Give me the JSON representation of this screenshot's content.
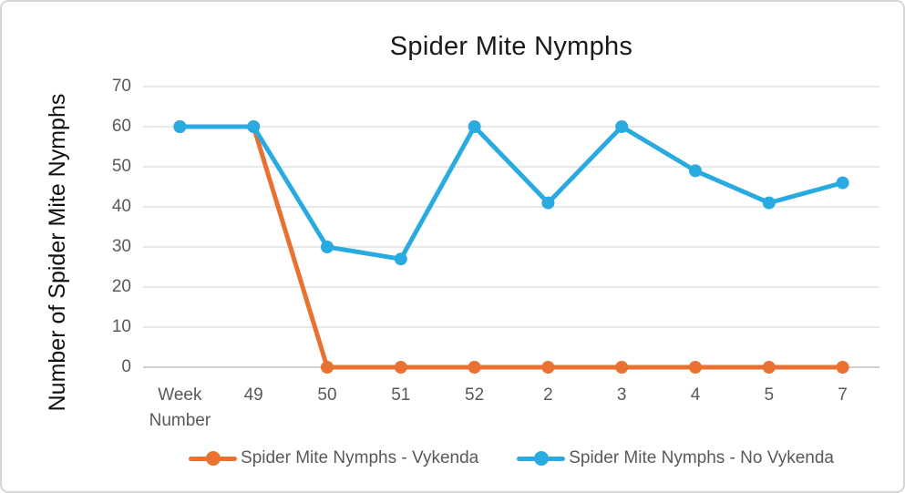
{
  "chart_data": {
    "type": "line",
    "title": "Spider Mite Nymphs",
    "xlabel": "",
    "ylabel": "Number of Spider Mite Nymphs",
    "categories": [
      "Week Number",
      "49",
      "50",
      "51",
      "52",
      "2",
      "3",
      "4",
      "5",
      "7"
    ],
    "y_ticks": [
      0,
      10,
      20,
      30,
      40,
      50,
      60,
      70
    ],
    "ylim": [
      0,
      70
    ],
    "grid": true,
    "legend_position": "bottom",
    "series": [
      {
        "name": "Spider Mite Nymphs - Vykenda",
        "color": "#E97132",
        "values": [
          60,
          60,
          0,
          0,
          0,
          0,
          0,
          0,
          0,
          0
        ]
      },
      {
        "name": "Spider Mite Nymphs - No Vykenda",
        "color": "#29ABE2",
        "values": [
          60,
          60,
          30,
          27,
          60,
          41,
          60,
          49,
          41,
          46
        ]
      }
    ],
    "colors": {
      "gridline": "#D9D9D9",
      "axis_line": "#BFBFBF",
      "tick_label": "#595959",
      "title_text": "#1A1A1A",
      "card_border": "#D6D6D6"
    }
  }
}
